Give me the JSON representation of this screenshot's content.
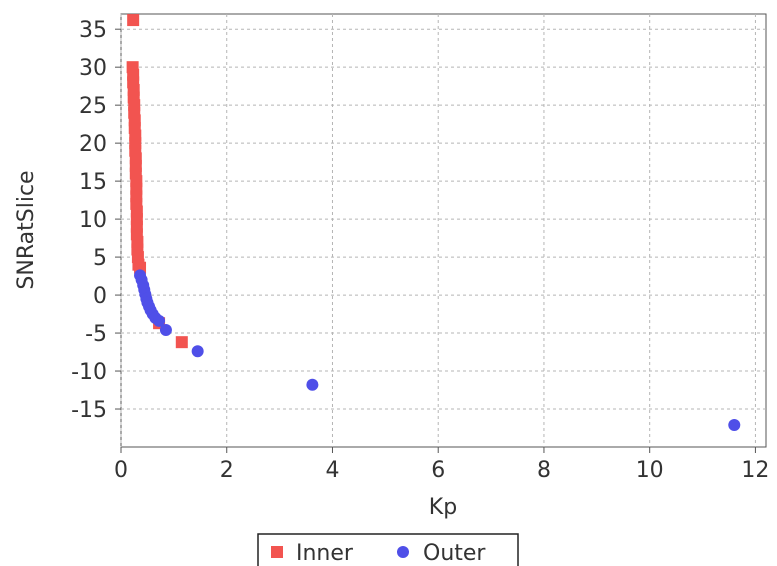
{
  "chart_data": {
    "type": "scatter",
    "xlabel": "Kp",
    "ylabel": "SNRatSlice",
    "xlim": [
      0,
      12.2
    ],
    "ylim": [
      -20,
      37
    ],
    "x_ticks": [
      0,
      2,
      4,
      6,
      8,
      10,
      12
    ],
    "y_ticks": [
      -15,
      -10,
      -5,
      0,
      5,
      10,
      15,
      20,
      25,
      30,
      35
    ],
    "grid": true,
    "legend_position": "bottom",
    "series": [
      {
        "name": "Inner",
        "marker": "square",
        "color": "#f25450",
        "points": [
          [
            0.23,
            36.2
          ],
          [
            0.22,
            30.0
          ],
          [
            0.23,
            29.0
          ],
          [
            0.23,
            28.0
          ],
          [
            0.24,
            27.0
          ],
          [
            0.24,
            26.0
          ],
          [
            0.25,
            25.0
          ],
          [
            0.25,
            24.0
          ],
          [
            0.26,
            23.0
          ],
          [
            0.26,
            22.0
          ],
          [
            0.27,
            21.0
          ],
          [
            0.27,
            20.0
          ],
          [
            0.27,
            19.0
          ],
          [
            0.28,
            18.0
          ],
          [
            0.28,
            17.0
          ],
          [
            0.28,
            16.0
          ],
          [
            0.29,
            15.0
          ],
          [
            0.29,
            14.0
          ],
          [
            0.29,
            13.0
          ],
          [
            0.29,
            12.0
          ],
          [
            0.3,
            11.0
          ],
          [
            0.3,
            10.0
          ],
          [
            0.3,
            9.0
          ],
          [
            0.3,
            8.0
          ],
          [
            0.31,
            7.0
          ],
          [
            0.31,
            6.0
          ],
          [
            0.32,
            5.0
          ],
          [
            0.33,
            4.0
          ],
          [
            0.36,
            3.6
          ],
          [
            0.72,
            -3.7
          ],
          [
            1.15,
            -6.2
          ]
        ]
      },
      {
        "name": "Outer",
        "marker": "circle",
        "color": "#4f4fe8",
        "points": [
          [
            0.36,
            2.6
          ],
          [
            0.39,
            2.0
          ],
          [
            0.42,
            1.3
          ],
          [
            0.44,
            0.7
          ],
          [
            0.46,
            0.1
          ],
          [
            0.48,
            -0.5
          ],
          [
            0.5,
            -1.0
          ],
          [
            0.53,
            -1.5
          ],
          [
            0.56,
            -2.0
          ],
          [
            0.6,
            -2.5
          ],
          [
            0.65,
            -3.0
          ],
          [
            0.72,
            -3.4
          ],
          [
            0.85,
            -4.6
          ],
          [
            1.45,
            -7.4
          ],
          [
            3.62,
            -11.8
          ],
          [
            11.6,
            -17.1
          ]
        ]
      }
    ]
  }
}
